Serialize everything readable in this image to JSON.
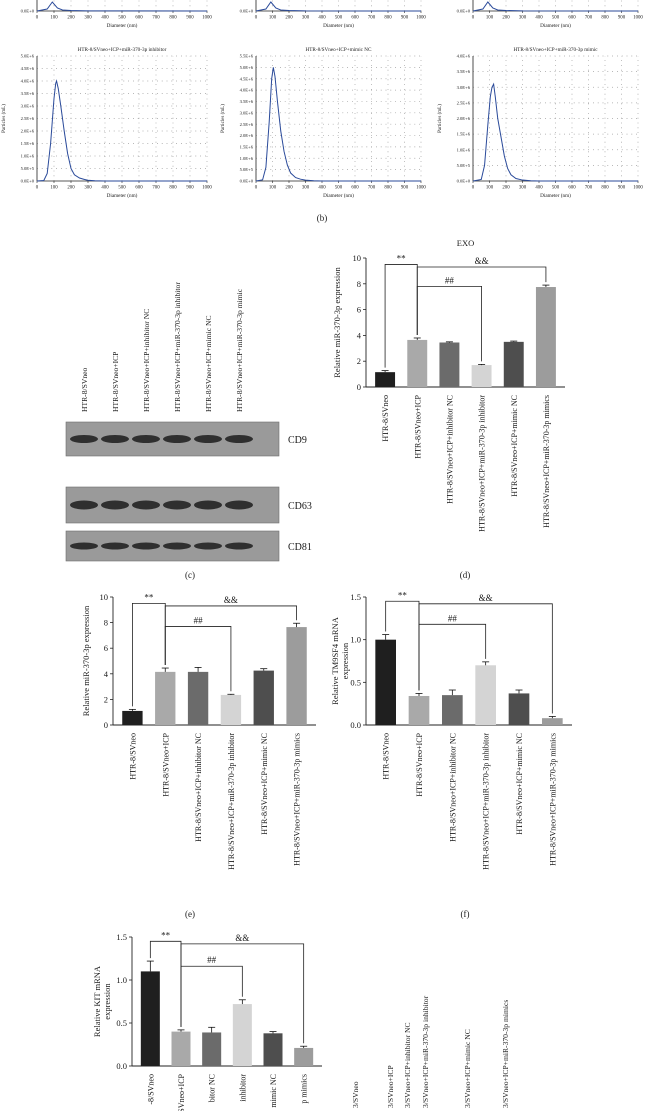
{
  "panel_labels": {
    "b": "(b)",
    "c": "(c)",
    "d": "(d)",
    "e": "(e)",
    "f": "(f)"
  },
  "colors": {
    "line": "#2a4a9a",
    "dot": "#8a8a8a",
    "axis": "#222222"
  },
  "bar_colors": [
    "#1f1f1f",
    "#a9a9a9",
    "#6b6b6b",
    "#d4d4d4",
    "#4e4e4e",
    "#9c9c9c"
  ],
  "groups": [
    "HTR-8/SVneo",
    "HTR-8/SVneo+ICP",
    "HTR-8/SVneo+ICP+inhibitor NC",
    "HTR-8/SVneo+ICP+miR-370-3p inhibitor",
    "HTR-8/SVneo+ICP+mimic NC",
    "HTR-8/SVneo+ICP+miR-370-3p mimics"
  ],
  "groups_partial": [
    "-8/SVneo",
    "SVneo+ICP",
    "bitor NC",
    "inhibitor",
    "mimic NC",
    "p mimics"
  ],
  "blot": {
    "lanes": [
      "HTR-8/SVneo",
      "HTR-8/SVneo+ICP",
      "HTR-8/SVneo+ICP+inhibitor NC",
      "HTR-8/SVneo+ICP+miR-370-3p inhibitor",
      "HTR-8/SVneo+ICP+mimic NC",
      "HTR-8/SVneo+ICP+miR-370-3p mimic"
    ],
    "bands": [
      "CD9",
      "CD63",
      "CD81"
    ],
    "partial_lanes": [
      "3/SVneo",
      "3/SVneo+ICP",
      "3/SVneo+ICP+inhibitor NC",
      "3/SVneo+ICP+miR-370-3p inhibitor",
      "3/SVneo+ICP+mimic NC",
      "3/SVneo+ICP+miR-370-3p mimics"
    ]
  },
  "chart_data": [
    {
      "type": "line",
      "panel": "b-top",
      "xlabel": "Diameter (nm)",
      "x_ticks": [
        "0",
        "100",
        "200",
        "300",
        "400",
        "500",
        "600",
        "700",
        "800",
        "900",
        "1000"
      ],
      "y_ticks": [
        "0.0E+0"
      ],
      "series": [
        {
          "x": [
            0,
            60,
            90,
            120,
            150,
            200,
            300,
            1000
          ],
          "values": [
            0,
            0.2,
            0.9,
            0.3,
            0.1,
            0.05,
            0.01,
            0
          ]
        }
      ]
    },
    {
      "type": "line",
      "panel": "b-top",
      "xlabel": "Diameter (nm)",
      "x_ticks": [
        "0",
        "100",
        "200",
        "300",
        "400",
        "500",
        "600",
        "700",
        "800",
        "900",
        "1000"
      ],
      "y_ticks": [
        "0.0E+0"
      ],
      "series": [
        {
          "x": [
            0,
            60,
            90,
            120,
            150,
            200,
            300,
            1000
          ],
          "values": [
            0,
            0.2,
            0.9,
            0.3,
            0.1,
            0.05,
            0.01,
            0
          ]
        }
      ]
    },
    {
      "type": "line",
      "panel": "b-top",
      "xlabel": "Diameter (nm)",
      "x_ticks": [
        "0",
        "100",
        "200",
        "300",
        "400",
        "500",
        "600",
        "700",
        "800",
        "900",
        "1000"
      ],
      "y_ticks": [
        "0.0E+0"
      ],
      "series": [
        {
          "x": [
            0,
            60,
            90,
            120,
            150,
            200,
            300,
            1000
          ],
          "values": [
            0,
            0.2,
            0.9,
            0.3,
            0.1,
            0.05,
            0.01,
            0
          ]
        }
      ]
    },
    {
      "type": "line",
      "panel": "b",
      "title": "HTR-8/SVneo+ICP+miR-370-3p inhibitor",
      "xlabel": "Diameter (nm)",
      "ylabel": "Particles (mL)",
      "x_ticks": [
        "0",
        "100",
        "200",
        "300",
        "400",
        "500",
        "600",
        "700",
        "800",
        "900",
        "1000"
      ],
      "y_ticks": [
        "0.0E+0",
        "5.0E+5",
        "1.0E+6",
        "1.5E+6",
        "2.0E+6",
        "2.5E+6",
        "3.0E+6",
        "3.5E+6",
        "4.0E+6",
        "4.5E+6",
        "5.0E+6"
      ],
      "xlim": [
        0,
        1000
      ],
      "ylim": [
        0,
        5000000
      ],
      "series": [
        {
          "x": [
            0,
            40,
            60,
            80,
            100,
            110,
            115,
            125,
            140,
            160,
            180,
            200,
            220,
            250,
            280,
            300,
            340,
            400,
            1000
          ],
          "values": [
            0,
            20000,
            300000,
            1500000,
            3300000,
            3900000,
            4000000,
            3700000,
            3000000,
            2000000,
            1100000,
            500000,
            250000,
            120000,
            60000,
            30000,
            10000,
            0,
            0
          ]
        }
      ]
    },
    {
      "type": "line",
      "panel": "b",
      "title": "HTR-8/SVneo+ICP+mimic NC",
      "xlabel": "Diameter (nm)",
      "ylabel": "Particles (mL)",
      "x_ticks": [
        "0",
        "100",
        "200",
        "300",
        "400",
        "500",
        "600",
        "700",
        "800",
        "900",
        "1000"
      ],
      "y_ticks": [
        "0.0E+0",
        "5.0E+5",
        "1.0E+6",
        "1.5E+6",
        "2.0E+6",
        "2.5E+6",
        "3.0E+6",
        "3.5E+6",
        "4.0E+6",
        "4.5E+6",
        "5.0E+6",
        "5.5E+6"
      ],
      "xlim": [
        0,
        1000
      ],
      "ylim": [
        0,
        5500000
      ],
      "series": [
        {
          "x": [
            0,
            40,
            60,
            80,
            95,
            105,
            115,
            130,
            150,
            170,
            190,
            210,
            240,
            270,
            300,
            350,
            400,
            1000
          ],
          "values": [
            0,
            50000,
            600000,
            2600000,
            4500000,
            5000000,
            4600000,
            3500000,
            2200000,
            1300000,
            700000,
            350000,
            150000,
            80000,
            40000,
            10000,
            0,
            0
          ]
        }
      ]
    },
    {
      "type": "line",
      "panel": "b",
      "title": "HTR-8/SVneo+ICP+miR-370-3p mimic",
      "xlabel": "Diameter (nm)",
      "ylabel": "Particles (mL)",
      "x_ticks": [
        "0",
        "100",
        "200",
        "300",
        "400",
        "500",
        "600",
        "700",
        "800",
        "900",
        "1000"
      ],
      "y_ticks": [
        "0.0E+0",
        "5.0E+5",
        "1.0E+6",
        "1.5E+6",
        "2.0E+6",
        "2.5E+6",
        "3.0E+6",
        "3.5E+6",
        "4.0E+6"
      ],
      "xlim": [
        0,
        1000
      ],
      "ylim": [
        0,
        4000000
      ],
      "series": [
        {
          "x": [
            0,
            50,
            70,
            90,
            105,
            115,
            125,
            135,
            150,
            170,
            190,
            210,
            230,
            260,
            300,
            350,
            400,
            1000
          ],
          "values": [
            0,
            50000,
            500000,
            1800000,
            2700000,
            3000000,
            3100000,
            2700000,
            2000000,
            1400000,
            800000,
            400000,
            200000,
            80000,
            30000,
            10000,
            0,
            0
          ]
        }
      ]
    },
    {
      "type": "bar",
      "panel": "d",
      "title": "EXO",
      "ylabel": "Relative miR-370-3p expression",
      "ylim": [
        0,
        10
      ],
      "y_ticks": [
        0,
        2,
        4,
        6,
        8,
        10
      ],
      "categories": [
        "HTR-8/SVneo",
        "HTR-8/SVneo+ICP",
        "HTR-8/SVneo+ICP+inhibitor NC",
        "HTR-8/SVneo+ICP+miR-370-3p inhibitor",
        "HTR-8/SVneo+ICP+mimic NC",
        "HTR-8/SVneo+ICP+miR-370-3p mimics"
      ],
      "values": [
        1.15,
        3.65,
        3.45,
        1.7,
        3.5,
        7.75
      ],
      "errors": [
        0.12,
        0.15,
        0.05,
        0.05,
        0.06,
        0.15
      ],
      "annotations": [
        {
          "text": "**",
          "from": 0,
          "to": 1,
          "level": 9.5
        },
        {
          "text": "&&",
          "from": 1,
          "to": 5,
          "level": 9.3
        },
        {
          "text": "##",
          "from": 1,
          "to": 3,
          "level": 7.8
        }
      ]
    },
    {
      "type": "bar",
      "panel": "e",
      "ylabel": "Relative miR-370-3p expression",
      "ylim": [
        0,
        10
      ],
      "y_ticks": [
        0,
        2,
        4,
        6,
        8,
        10
      ],
      "categories": [
        "HTR-8/SVneo",
        "HTR-8/SVneo+ICP",
        "HTR-8/SVneo+ICP+inhibitor NC",
        "HTR-8/SVneo+ICP+miR-370-3p inhibitor",
        "HTR-8/SVneo+ICP+mimic NC",
        "HTR-8/SVneo+ICP+miR-370-3p mimics"
      ],
      "values": [
        1.1,
        4.15,
        4.15,
        2.35,
        4.25,
        7.65
      ],
      "errors": [
        0.12,
        0.3,
        0.35,
        0.05,
        0.15,
        0.3
      ],
      "annotations": [
        {
          "text": "**",
          "from": 0,
          "to": 1,
          "level": 9.5
        },
        {
          "text": "&&",
          "from": 1,
          "to": 5,
          "level": 9.3
        },
        {
          "text": "##",
          "from": 1,
          "to": 3,
          "level": 7.7
        }
      ]
    },
    {
      "type": "bar",
      "panel": "f",
      "ylabel": "Relative TM9SF4 mRNA expression",
      "ylim": [
        0,
        1.5
      ],
      "y_ticks": [
        "0.0",
        "0.5",
        "1.0",
        "1.5"
      ],
      "categories": [
        "HTR-8/SVneo",
        "HTR-8/SVneo+ICP",
        "HTR-8/SVneo+ICP+inhibitor NC",
        "HTR-8/SVneo+ICP+miR-370-3p inhibitor",
        "HTR-8/SVneo+ICP+mimic NC",
        "HTR-8/SVneo+ICP+miR-370-3p mimics"
      ],
      "values": [
        1.0,
        0.34,
        0.35,
        0.7,
        0.37,
        0.08
      ],
      "errors": [
        0.06,
        0.03,
        0.06,
        0.04,
        0.04,
        0.02
      ],
      "annotations": [
        {
          "text": "**",
          "from": 0,
          "to": 1,
          "level": 1.45
        },
        {
          "text": "&&",
          "from": 1,
          "to": 5,
          "level": 1.42
        },
        {
          "text": "##",
          "from": 1,
          "to": 3,
          "level": 1.18
        }
      ]
    },
    {
      "type": "bar",
      "panel": "g",
      "ylabel": "Relative KIT mRNA expression",
      "ylim": [
        0,
        1.5
      ],
      "y_ticks": [
        "0.0",
        "0.5",
        "1.0",
        "1.5"
      ],
      "categories": [
        "-8/SVneo",
        "SVneo+ICP",
        "bitor NC",
        "inhibitor",
        "mimic NC",
        "p mimics"
      ],
      "values": [
        1.1,
        0.4,
        0.39,
        0.72,
        0.38,
        0.21
      ],
      "errors": [
        0.12,
        0.02,
        0.06,
        0.05,
        0.02,
        0.02
      ],
      "annotations": [
        {
          "text": "**",
          "from": 0,
          "to": 1,
          "level": 1.45
        },
        {
          "text": "&&",
          "from": 1,
          "to": 5,
          "level": 1.42
        },
        {
          "text": "##",
          "from": 1,
          "to": 3,
          "level": 1.16
        }
      ]
    }
  ]
}
